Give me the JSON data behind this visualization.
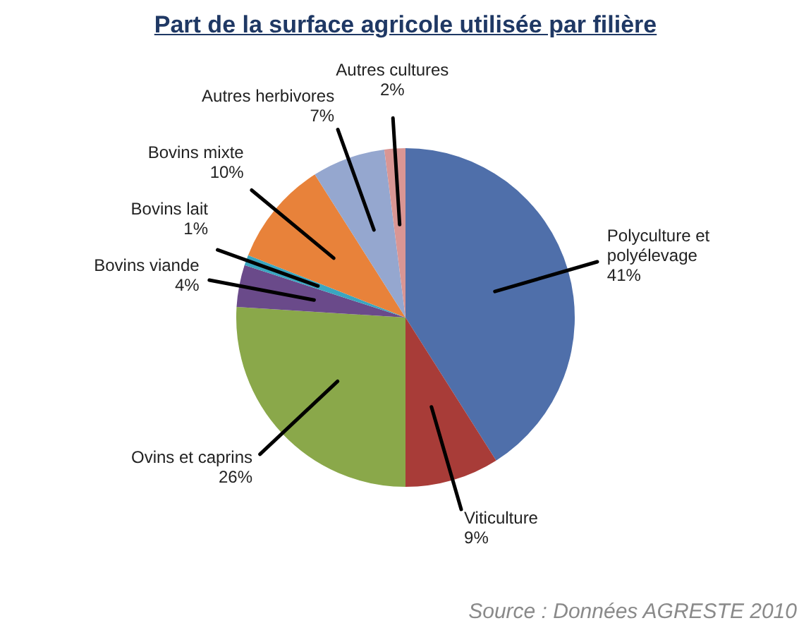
{
  "chart_data": {
    "type": "pie",
    "title": "Part de la surface agricole utilisée par filière",
    "categories": [
      "Polyculture et polyélevage",
      "Viticulture",
      "Ovins et caprins",
      "Bovins viande",
      "Bovins lait",
      "Bovins mixte",
      "Autres herbivores",
      "Autres cultures"
    ],
    "values": [
      41,
      9,
      26,
      4,
      1,
      10,
      7,
      2
    ],
    "value_labels": [
      "41%",
      "9%",
      "26%",
      "4%",
      "1%",
      "10%",
      "7%",
      "2%"
    ],
    "colors": [
      "#4f6faa",
      "#a83c38",
      "#8aa84a",
      "#6a4a8a",
      "#3aa6c0",
      "#e8823a",
      "#95a7cf",
      "#d99694"
    ],
    "legend": false,
    "annotations": [
      "Source : Données AGRESTE 2010"
    ]
  }
}
